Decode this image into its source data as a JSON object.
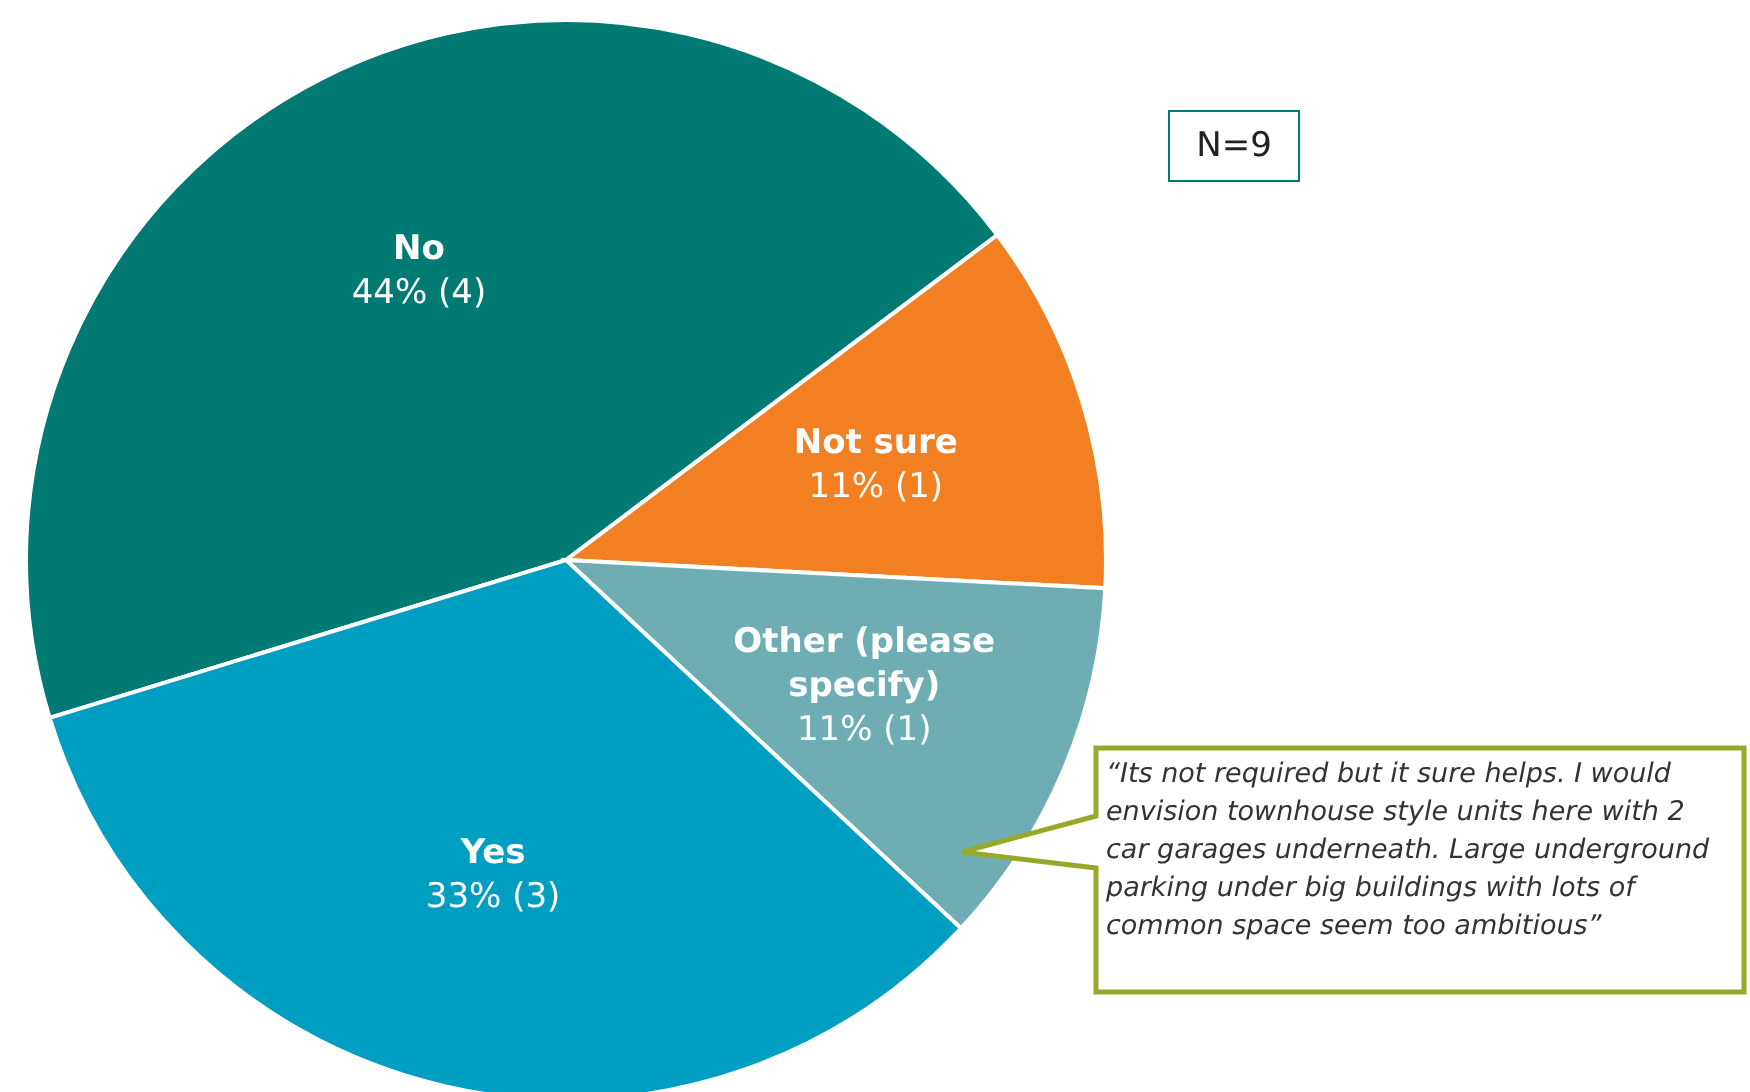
{
  "chart_data": {
    "type": "pie",
    "categories": [
      "No",
      "Not sure",
      "Other (please specify)",
      "Yes"
    ],
    "values": [
      44,
      11,
      11,
      33
    ],
    "colors": [
      "#007a73",
      "#f27f21",
      "#6fadb5",
      "#009fc2"
    ],
    "value_labels": [
      "44% (4)",
      "11% (1)",
      "11% (1)",
      "33% (3)"
    ],
    "legend": false,
    "annotations": [
      "N=9",
      "“Its not required but it sure helps. I would envision townhouse style units here with 2 car garages underneath. Large underground parking under big buildings with lots of common space seem too ambitious”"
    ]
  }
}
